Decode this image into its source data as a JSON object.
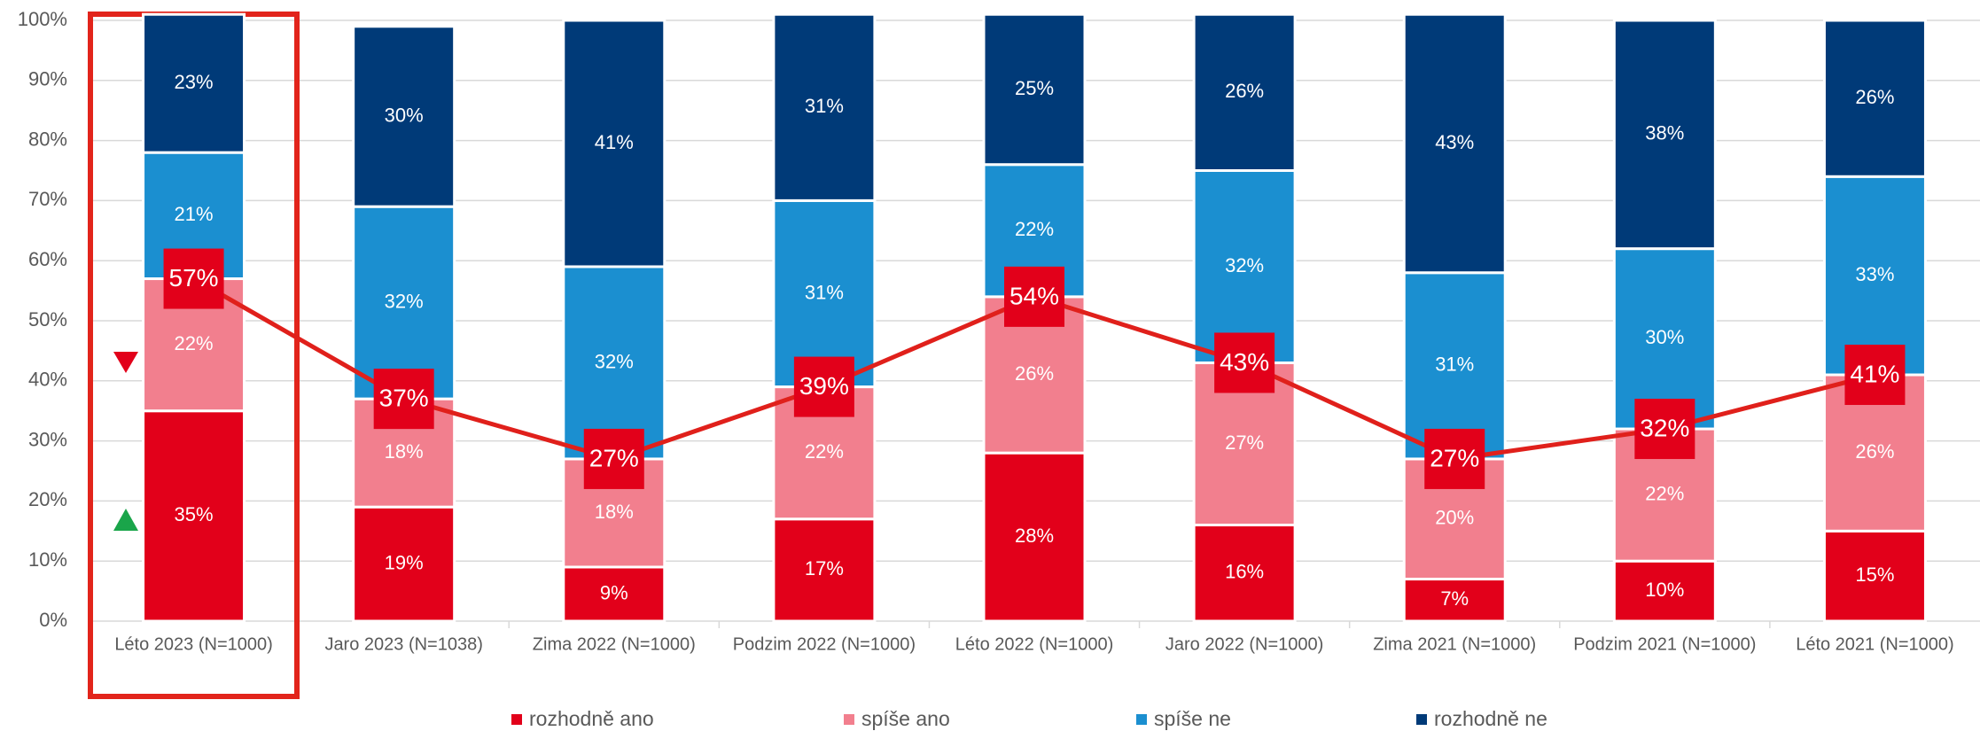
{
  "chart_data": {
    "type": "bar",
    "categories": [
      "Léto 2023 (N=1000)",
      "Jaro 2023 (N=1038)",
      "Zima 2022 (N=1000)",
      "Podzim 2022 (N=1000)",
      "Léto 2022 (N=1000)",
      "Jaro 2022 (N=1000)",
      "Zima 2021 (N=1000)",
      "Podzim 2021 (N=1000)",
      "Léto 2021 (N=1000)"
    ],
    "series": [
      {
        "name": "rozhodně ano",
        "color": "#e2001a",
        "values": [
          35,
          19,
          9,
          17,
          28,
          16,
          7,
          10,
          15
        ],
        "value_labels": [
          "35%",
          "19%",
          "9%",
          "17%",
          "28%",
          "16%",
          "7%",
          "10%",
          "15%"
        ]
      },
      {
        "name": "spíše ano",
        "color": "#f27f8e",
        "values": [
          22,
          18,
          18,
          22,
          26,
          27,
          20,
          22,
          26
        ],
        "value_labels": [
          "22%",
          "18%",
          "18%",
          "22%",
          "26%",
          "27%",
          "20%",
          "22%",
          "26%"
        ]
      },
      {
        "name": "spíše ne",
        "color": "#1b8fd0",
        "values": [
          21,
          32,
          32,
          31,
          22,
          32,
          31,
          30,
          33
        ],
        "value_labels": [
          "21%",
          "32%",
          "32%",
          "31%",
          "22%",
          "32%",
          "31%",
          "30%",
          "33%"
        ]
      },
      {
        "name": "rozhodně ne",
        "color": "#003a78",
        "values": [
          23,
          30,
          41,
          31,
          25,
          26,
          43,
          38,
          26
        ],
        "value_labels": [
          "23%",
          "30%",
          "41%",
          "31%",
          "25%",
          "26%",
          "43%",
          "38%",
          "26%"
        ]
      }
    ],
    "line": {
      "type": "line",
      "color": "#e0201b",
      "values": [
        57,
        37,
        27,
        39,
        54,
        43,
        27,
        32,
        41
      ],
      "value_labels": [
        "57%",
        "37%",
        "27%",
        "39%",
        "54%",
        "43%",
        "27%",
        "32%",
        "41%"
      ]
    },
    "ylim": [
      0,
      100
    ],
    "yticks": [
      {
        "value": 0,
        "label": "0%"
      },
      {
        "value": 10,
        "label": "10%"
      },
      {
        "value": 20,
        "label": "20%"
      },
      {
        "value": 30,
        "label": "30%"
      },
      {
        "value": 40,
        "label": "40%"
      },
      {
        "value": 50,
        "label": "50%"
      },
      {
        "value": 60,
        "label": "60%"
      },
      {
        "value": 70,
        "label": "70%"
      },
      {
        "value": 80,
        "label": "80%"
      },
      {
        "value": 90,
        "label": "90%"
      },
      {
        "value": 100,
        "label": "100%"
      }
    ],
    "grid": true,
    "legend": "bottom"
  }
}
